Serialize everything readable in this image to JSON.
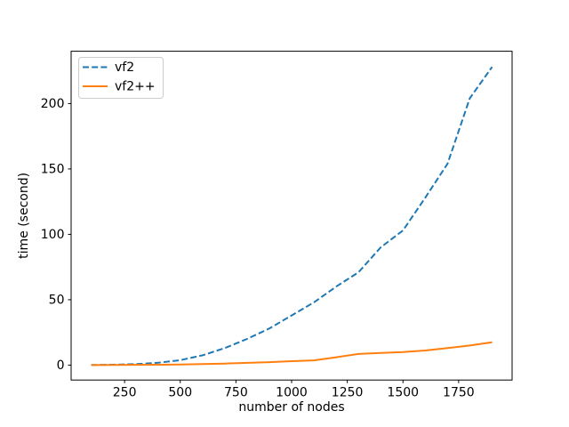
{
  "figure": {
    "background": "#ffffff",
    "frame_color": "#000000",
    "text_color": "#000000",
    "legend_border_color": "#cccccc"
  },
  "chart_data": {
    "type": "line",
    "title": "",
    "xlabel": "number of nodes",
    "ylabel": "time (second)",
    "xlim": [
      10,
      1990
    ],
    "ylim": [
      -11.4,
      240
    ],
    "xticks": [
      250,
      500,
      750,
      1000,
      1250,
      1500,
      1750
    ],
    "yticks": [
      0,
      50,
      100,
      150,
      200
    ],
    "grid": false,
    "legend_position": "upper-left",
    "x": [
      100,
      200,
      300,
      400,
      500,
      600,
      700,
      800,
      900,
      1000,
      1100,
      1200,
      1300,
      1400,
      1500,
      1600,
      1700,
      1800,
      1900
    ],
    "series": [
      {
        "name": "vf2",
        "color": "#1f77b4",
        "linestyle": "dashed",
        "values": [
          0.1,
          0.3,
          0.8,
          1.8,
          3.8,
          7.5,
          13,
          20,
          28,
          38,
          48,
          60,
          71,
          90,
          103,
          128,
          154,
          204,
          228
        ]
      },
      {
        "name": "vf2++",
        "color": "#ff7f0e",
        "linestyle": "solid",
        "values": [
          0.05,
          0.1,
          0.2,
          0.3,
          0.5,
          0.8,
          1.2,
          1.7,
          2.3,
          3.0,
          3.6,
          6.0,
          8.5,
          9.3,
          10.0,
          11.2,
          13.0,
          15.0,
          17.5
        ]
      }
    ]
  }
}
